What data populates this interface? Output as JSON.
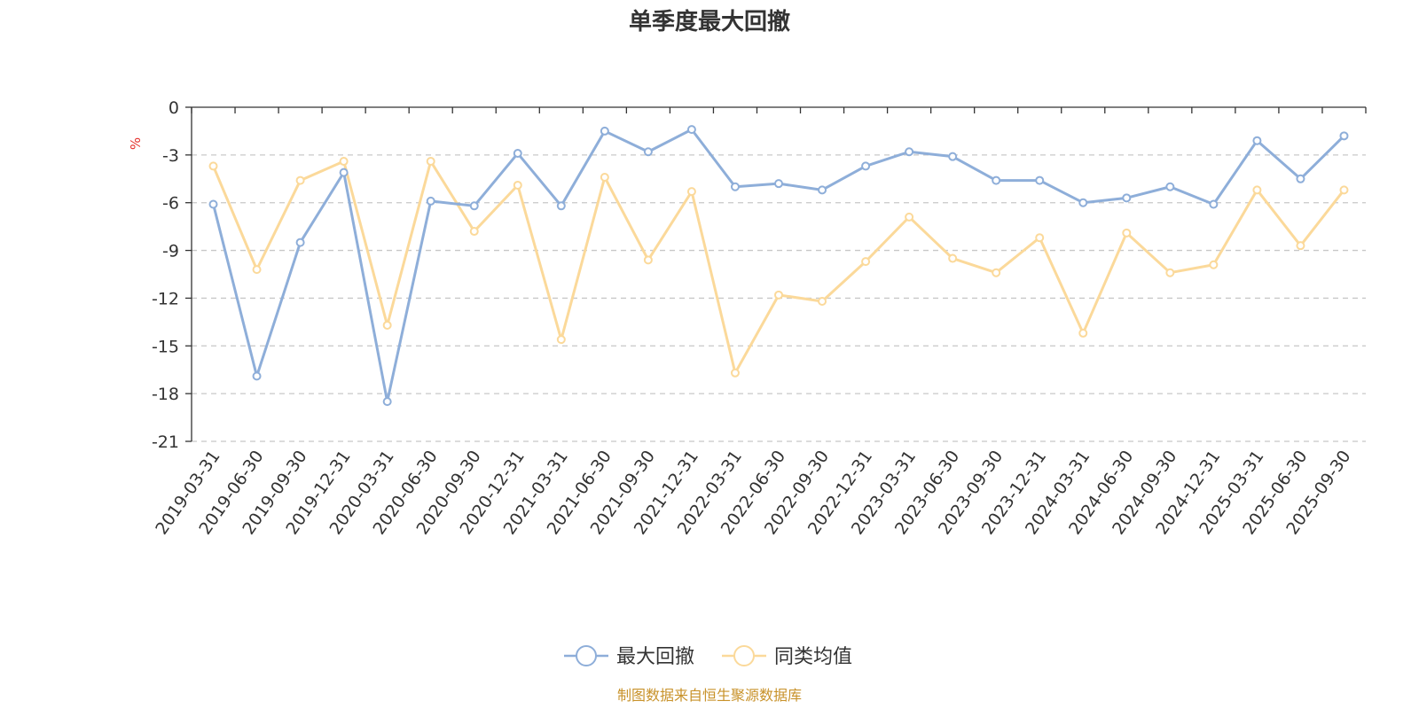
{
  "chart_data": {
    "type": "line",
    "title": "单季度最大回撤",
    "ylabel": "%",
    "ylim": [
      -21,
      0
    ],
    "yticks": [
      0,
      -3,
      -6,
      -9,
      -12,
      -15,
      -18,
      -21
    ],
    "grid": true,
    "legend_position": "bottom-center",
    "categories": [
      "2019-03-31",
      "2019-06-30",
      "2019-09-30",
      "2019-12-31",
      "2020-03-31",
      "2020-06-30",
      "2020-09-30",
      "2020-12-31",
      "2021-03-31",
      "2021-06-30",
      "2021-09-30",
      "2021-12-31",
      "2022-03-31",
      "2022-06-30",
      "2022-09-30",
      "2022-12-31",
      "2023-03-31",
      "2023-06-30",
      "2023-09-30",
      "2023-12-31",
      "2024-03-31",
      "2024-06-30",
      "2024-09-30",
      "2024-12-31",
      "2025-03-31",
      "2025-06-30",
      "2025-09-30"
    ],
    "series": [
      {
        "name": "最大回撤",
        "color": "#8eaed9",
        "values": [
          -6.1,
          -16.9,
          -8.5,
          -4.1,
          -18.5,
          -5.9,
          -6.2,
          -2.9,
          -6.2,
          -1.5,
          -2.8,
          -1.4,
          -5.0,
          -4.8,
          -5.2,
          -3.7,
          -2.8,
          -3.1,
          -4.6,
          -4.6,
          -6.0,
          -5.7,
          -5.0,
          -6.1,
          -2.1,
          -4.5,
          -1.8
        ]
      },
      {
        "name": "同类均值",
        "color": "#fbd99a",
        "values": [
          -3.7,
          -10.2,
          -4.6,
          -3.4,
          -13.7,
          -3.4,
          -7.8,
          -4.9,
          -14.6,
          -4.4,
          -9.6,
          -5.3,
          -16.7,
          -11.8,
          -12.2,
          -9.7,
          -6.9,
          -9.5,
          -10.4,
          -8.2,
          -14.2,
          -7.9,
          -10.4,
          -9.9,
          -5.2,
          -8.7,
          -5.2
        ]
      }
    ],
    "source": "制图数据来自恒生聚源数据库"
  }
}
